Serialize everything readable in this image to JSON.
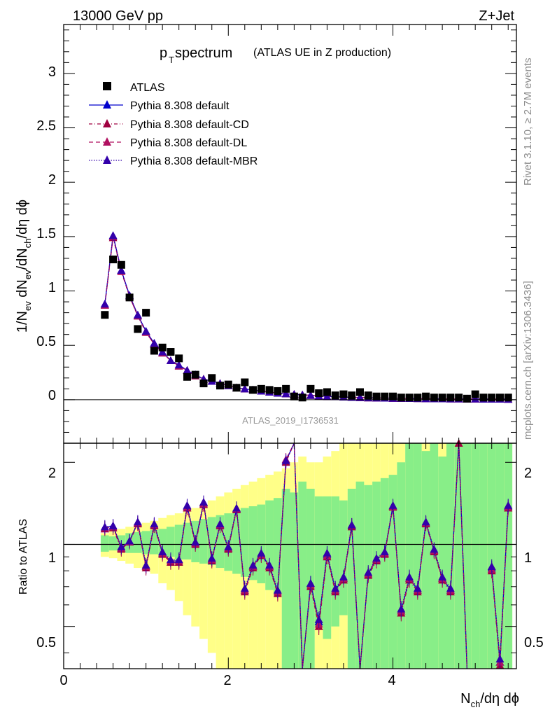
{
  "header": {
    "energy": "13000 GeV pp",
    "process": "Z+Jet",
    "title_main": "p",
    "title_sub": "T",
    "title_rest": " spectrum",
    "title_note": "(ATLAS UE in Z production)",
    "analysis": "ATLAS_2019_I1736531",
    "side_rivet": "Rivet 3.1.10, ≥ 2.7M events",
    "side_site": "mcplots.cern.ch [arXiv:1306.3436]"
  },
  "axes": {
    "ylabel_top": "1/N",
    "ylabel_ratio": "Ratio to ATLAS",
    "xlabel": "N",
    "top_ticks": [
      "0",
      "0.5",
      "1",
      "1.5",
      "2",
      "2.5",
      "3"
    ],
    "ratio_ticks": [
      "0.5",
      "1",
      "2"
    ],
    "x_ticks": [
      "0",
      "2",
      "4"
    ]
  },
  "colors": {
    "default": "#0000cc",
    "cd": "#a00040",
    "dl": "#b01060",
    "mbr": "#3300aa",
    "band_inner": "#88ee88",
    "band_outer": "#ffff88"
  },
  "legend": [
    {
      "label": "ATLAS",
      "style": "data"
    },
    {
      "label": "Pythia 8.308 default",
      "style": "default"
    },
    {
      "label": "Pythia 8.308 default-CD",
      "style": "cd"
    },
    {
      "label": "Pythia 8.308 default-DL",
      "style": "dl"
    },
    {
      "label": "Pythia 8.308 default-MBR",
      "style": "mbr"
    }
  ],
  "chart_data": {
    "type": "scatter",
    "xlabel": "N_ch/dη dϕ",
    "ylabel": "1/N_ev dN_ev/dN_ch/dη dϕ",
    "xlim": [
      0,
      5.5
    ],
    "ylim": [
      -0.4,
      3.45
    ],
    "ratio_ylim": [
      0.35,
      2.35
    ],
    "ratio_log": true,
    "x": [
      0.5,
      0.6,
      0.7,
      0.8,
      0.9,
      1.0,
      1.1,
      1.2,
      1.3,
      1.4,
      1.5,
      1.6,
      1.7,
      1.8,
      1.9,
      2.0,
      2.1,
      2.2,
      2.3,
      2.4,
      2.5,
      2.6,
      2.7,
      2.8,
      2.9,
      3.0,
      3.1,
      3.2,
      3.3,
      3.4,
      3.5,
      3.6,
      3.7,
      3.8,
      3.9,
      4.0,
      4.1,
      4.2,
      4.3,
      4.4,
      4.5,
      4.6,
      4.7,
      4.8,
      4.9,
      5.0,
      5.1,
      5.2,
      5.3,
      5.4
    ],
    "atlas": [
      0.78,
      1.29,
      1.24,
      0.94,
      0.65,
      0.8,
      0.45,
      0.48,
      0.44,
      0.38,
      0.21,
      0.23,
      0.15,
      0.2,
      0.13,
      0.14,
      0.11,
      0.16,
      0.09,
      0.1,
      0.09,
      0.08,
      0.1,
      0.03,
      0.02,
      0.1,
      0.06,
      0.07,
      0.04,
      0.05,
      0.04,
      0.07,
      0.04,
      0.03,
      0.03,
      0.03,
      0.02,
      0.02,
      0.02,
      0.03,
      0.02,
      0.02,
      0.02,
      0.02,
      0.01,
      0.05,
      0.02,
      0.02,
      0.02,
      0.02
    ],
    "series": [
      {
        "name": "Pythia 8.308 default",
        "values": [
          0.88,
          1.51,
          1.19,
          0.96,
          0.78,
          0.63,
          0.52,
          0.44,
          0.36,
          0.32,
          0.27,
          0.23,
          0.19,
          0.17,
          0.15,
          0.13,
          0.11,
          0.1,
          0.09,
          0.08,
          0.07,
          0.06,
          0.055,
          0.05,
          0.045,
          0.04,
          0.035,
          0.03,
          0.028,
          0.025,
          0.022,
          0.02,
          0.018,
          0.016,
          0.015,
          0.014,
          0.013,
          0.012,
          0.011,
          0.01,
          0.009,
          0.009,
          0.008,
          0.008,
          0.007,
          0.007,
          0.006,
          0.006,
          0.006,
          0.005
        ],
        "ratio": [
          1.15,
          1.17,
          0.97,
          1.03,
          1.2,
          0.83,
          1.18,
          0.93,
          0.87,
          0.87,
          1.38,
          1.02,
          1.42,
          0.88,
          1.18,
          0.97,
          1.35,
          0.68,
          0.83,
          0.92,
          0.83,
          0.67,
          2.02,
          2.5,
          0.33,
          0.72,
          0.52,
          0.92,
          0.68,
          0.75,
          1.17,
          0.3,
          0.78,
          0.88,
          0.93,
          1.38,
          0.57,
          0.75,
          0.68,
          1.2,
          0.95,
          0.75,
          0.68,
          2.4,
          0.3,
          null,
          null,
          0.82,
          0.37,
          1.38
        ]
      },
      {
        "name": "Pythia 8.308 default-CD",
        "values": [
          0.87,
          1.49,
          1.18,
          0.95,
          0.77,
          0.62,
          0.51,
          0.43,
          0.36,
          0.31,
          0.27,
          0.22,
          0.19,
          0.17,
          0.15,
          0.13,
          0.11,
          0.1,
          0.09,
          0.08,
          0.07,
          0.06,
          0.055,
          0.05,
          0.045,
          0.04,
          0.035,
          0.03,
          0.028,
          0.025,
          0.022,
          0.02,
          0.018,
          0.016,
          0.015,
          0.014,
          0.013,
          0.012,
          0.011,
          0.01,
          0.009,
          0.009,
          0.008,
          0.008,
          0.007,
          0.007,
          0.006,
          0.006,
          0.006,
          0.005
        ],
        "ratio": [
          1.14,
          1.15,
          0.96,
          1.02,
          1.19,
          0.82,
          1.17,
          0.92,
          0.86,
          0.86,
          1.36,
          1.0,
          1.4,
          0.87,
          1.17,
          0.96,
          1.34,
          0.67,
          0.82,
          0.91,
          0.82,
          0.66,
          2.0,
          2.45,
          0.32,
          0.7,
          0.5,
          0.9,
          0.67,
          0.74,
          1.16,
          0.29,
          0.77,
          0.87,
          0.92,
          1.37,
          0.56,
          0.74,
          0.67,
          1.19,
          0.94,
          0.74,
          0.67,
          2.35,
          0.3,
          null,
          null,
          0.8,
          0.36,
          1.36
        ]
      },
      {
        "name": "Pythia 8.308 default-DL",
        "values": [
          0.87,
          1.5,
          1.18,
          0.95,
          0.77,
          0.62,
          0.51,
          0.43,
          0.36,
          0.31,
          0.27,
          0.22,
          0.19,
          0.17,
          0.15,
          0.13,
          0.11,
          0.1,
          0.09,
          0.08,
          0.07,
          0.06,
          0.055,
          0.05,
          0.045,
          0.04,
          0.035,
          0.03,
          0.028,
          0.025,
          0.022,
          0.02,
          0.018,
          0.016,
          0.015,
          0.014,
          0.013,
          0.012,
          0.011,
          0.01,
          0.009,
          0.009,
          0.008,
          0.008,
          0.007,
          0.007,
          0.006,
          0.006,
          0.006,
          0.005
        ],
        "ratio": [
          1.15,
          1.16,
          0.97,
          1.02,
          1.2,
          0.83,
          1.18,
          0.93,
          0.87,
          0.87,
          1.37,
          1.01,
          1.41,
          0.88,
          1.18,
          0.97,
          1.35,
          0.68,
          0.83,
          0.92,
          0.83,
          0.67,
          2.05,
          2.48,
          0.33,
          0.71,
          0.51,
          0.91,
          0.68,
          0.75,
          1.18,
          0.3,
          0.78,
          0.88,
          0.93,
          1.38,
          0.57,
          0.75,
          0.68,
          1.2,
          0.95,
          0.75,
          0.68,
          2.38,
          0.3,
          null,
          null,
          0.81,
          0.37,
          1.37
        ]
      },
      {
        "name": "Pythia 8.308 default-MBR",
        "values": [
          0.88,
          1.51,
          1.19,
          0.96,
          0.78,
          0.63,
          0.52,
          0.44,
          0.36,
          0.32,
          0.27,
          0.23,
          0.19,
          0.17,
          0.15,
          0.13,
          0.11,
          0.1,
          0.09,
          0.08,
          0.07,
          0.06,
          0.055,
          0.05,
          0.045,
          0.04,
          0.035,
          0.03,
          0.028,
          0.025,
          0.022,
          0.02,
          0.018,
          0.016,
          0.015,
          0.014,
          0.013,
          0.012,
          0.011,
          0.01,
          0.009,
          0.009,
          0.008,
          0.008,
          0.007,
          0.007,
          0.006,
          0.006,
          0.006,
          0.005
        ],
        "ratio": [
          1.16,
          1.17,
          0.98,
          1.03,
          1.21,
          0.84,
          1.19,
          0.94,
          0.88,
          0.88,
          1.39,
          1.02,
          1.43,
          0.89,
          1.19,
          0.98,
          1.36,
          0.69,
          0.84,
          0.93,
          0.84,
          0.68,
          2.03,
          2.52,
          0.34,
          0.72,
          0.53,
          0.93,
          0.69,
          0.76,
          1.18,
          0.31,
          0.79,
          0.89,
          0.94,
          1.39,
          0.58,
          0.76,
          0.69,
          1.21,
          0.96,
          0.76,
          0.69,
          2.42,
          0.31,
          null,
          null,
          0.83,
          0.38,
          1.39
        ]
      }
    ],
    "band_inner": [
      [
        0.94,
        1.08
      ],
      [
        0.95,
        1.07
      ],
      [
        0.95,
        1.08
      ],
      [
        0.93,
        1.1
      ],
      [
        0.93,
        1.11
      ],
      [
        0.92,
        1.12
      ],
      [
        0.92,
        1.13
      ],
      [
        0.9,
        1.14
      ],
      [
        0.9,
        1.16
      ],
      [
        0.88,
        1.18
      ],
      [
        0.88,
        1.2
      ],
      [
        0.86,
        1.22
      ],
      [
        0.85,
        1.24
      ],
      [
        0.84,
        1.26
      ],
      [
        0.82,
        1.28
      ],
      [
        0.8,
        1.3
      ],
      [
        0.78,
        1.33
      ],
      [
        0.76,
        1.36
      ],
      [
        0.74,
        1.38
      ],
      [
        0.72,
        1.4
      ],
      [
        0.68,
        1.45
      ],
      [
        0.66,
        1.48
      ],
      [
        0.35,
        1.6
      ],
      [
        0.35,
        1.55
      ],
      [
        0.35,
        1.7
      ],
      [
        0.35,
        1.6
      ],
      [
        0.5,
        1.5
      ],
      [
        0.45,
        1.5
      ],
      [
        0.5,
        1.5
      ],
      [
        0.55,
        1.45
      ],
      [
        0.35,
        1.6
      ],
      [
        0.35,
        1.7
      ],
      [
        0.35,
        1.65
      ],
      [
        0.35,
        1.7
      ],
      [
        0.35,
        1.75
      ],
      [
        0.35,
        1.8
      ],
      [
        0.35,
        2.0
      ],
      [
        0.35,
        2.35
      ],
      [
        0.35,
        2.35
      ],
      [
        0.35,
        2.2
      ],
      [
        0.35,
        2.35
      ],
      [
        0.35,
        2.1
      ],
      [
        0.35,
        2.35
      ],
      [
        0.35,
        2.35
      ],
      [
        0.35,
        2.35
      ],
      [
        0.35,
        2.35
      ],
      [
        0.35,
        2.35
      ],
      [
        0.35,
        2.35
      ],
      [
        0.35,
        2.35
      ],
      [
        0.35,
        2.35
      ]
    ],
    "band_outer": [
      [
        0.9,
        1.1
      ],
      [
        0.89,
        1.12
      ],
      [
        0.87,
        1.14
      ],
      [
        0.85,
        1.16
      ],
      [
        0.82,
        1.18
      ],
      [
        0.8,
        1.2
      ],
      [
        0.78,
        1.22
      ],
      [
        0.72,
        1.25
      ],
      [
        0.68,
        1.28
      ],
      [
        0.62,
        1.3
      ],
      [
        0.55,
        1.33
      ],
      [
        0.5,
        1.36
      ],
      [
        0.45,
        1.4
      ],
      [
        0.4,
        1.45
      ],
      [
        0.35,
        1.5
      ],
      [
        0.35,
        1.55
      ],
      [
        0.35,
        1.6
      ],
      [
        0.35,
        1.65
      ],
      [
        0.35,
        1.7
      ],
      [
        0.35,
        1.75
      ],
      [
        0.35,
        1.8
      ],
      [
        0.35,
        1.85
      ],
      [
        0.35,
        1.9
      ],
      [
        0.35,
        2.0
      ],
      [
        0.35,
        2.1
      ],
      [
        0.35,
        2.0
      ],
      [
        0.35,
        2.0
      ],
      [
        0.35,
        2.1
      ],
      [
        0.35,
        2.2
      ],
      [
        0.35,
        2.35
      ],
      [
        0.35,
        2.35
      ],
      [
        0.35,
        2.35
      ],
      [
        0.35,
        2.35
      ],
      [
        0.35,
        2.35
      ],
      [
        0.35,
        2.35
      ],
      [
        0.35,
        2.35
      ],
      [
        0.35,
        2.35
      ],
      [
        0.35,
        2.35
      ],
      [
        0.35,
        2.35
      ],
      [
        0.35,
        2.35
      ],
      [
        0.35,
        2.35
      ],
      [
        0.35,
        2.35
      ],
      [
        0.35,
        2.35
      ],
      [
        0.35,
        2.35
      ],
      [
        0.35,
        2.35
      ],
      [
        0.35,
        2.35
      ],
      [
        0.35,
        2.35
      ],
      [
        0.35,
        2.35
      ],
      [
        0.35,
        2.35
      ],
      [
        0.35,
        2.35
      ]
    ]
  }
}
